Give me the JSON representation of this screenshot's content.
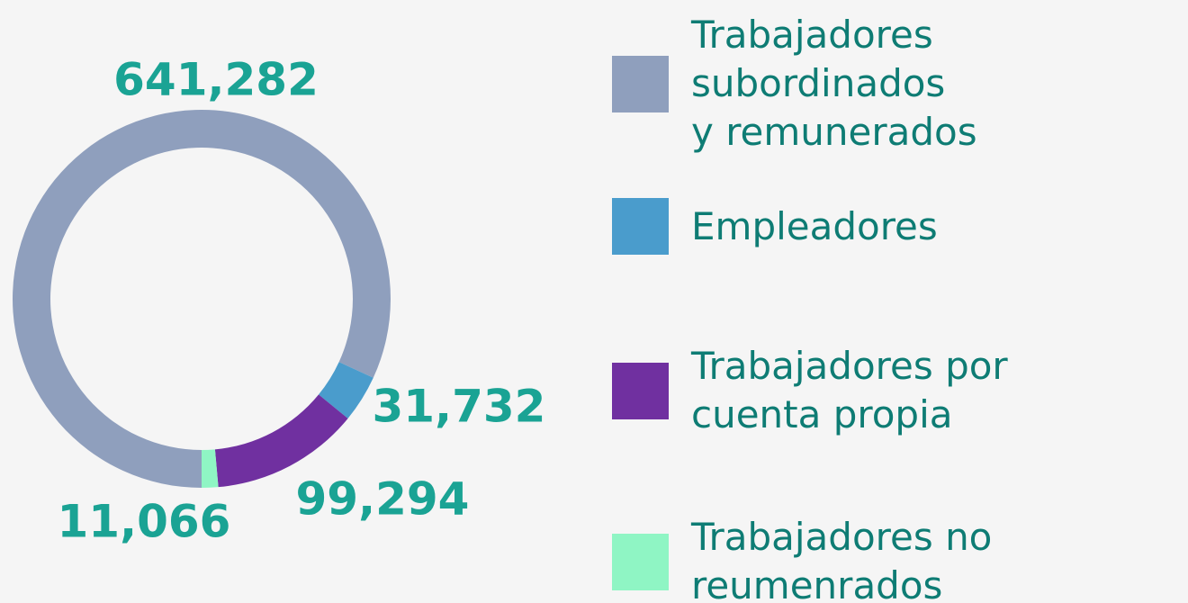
{
  "chart_data": {
    "type": "donut",
    "categories": [
      "Trabajadores subordinados\ny remunerados",
      "Empleadores",
      "Trabajadores por\ncuenta propia",
      "Trabajadores no\nreumenrados"
    ],
    "values": [
      641282,
      31732,
      99294,
      11066
    ],
    "value_labels": [
      "641,282",
      "31,732",
      "99,294",
      "11,066"
    ],
    "colors": [
      "#8f9fbd",
      "#4a9ccc",
      "#7030a0",
      "#8ff5c4"
    ]
  }
}
